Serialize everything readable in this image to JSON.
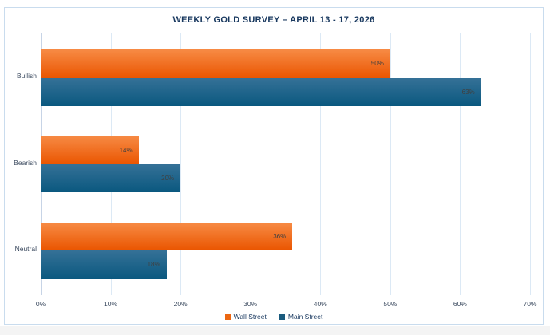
{
  "chart_data": {
    "type": "bar",
    "orientation": "horizontal",
    "title": "WEEKLY GOLD SURVEY – APRIL 13 - 17, 2026",
    "categories": [
      "Bullish",
      "Bearish",
      "Neutral"
    ],
    "series": [
      {
        "name": "Wall Street",
        "color": "#ec6712",
        "gradient_top": "#f78b45",
        "gradient_bottom": "#ea5500",
        "values": [
          50,
          14,
          36
        ]
      },
      {
        "name": "Main Street",
        "color": "#1a5b7e",
        "gradient_top": "#357197",
        "gradient_bottom": "#0a587f",
        "values": [
          63,
          20,
          18
        ]
      }
    ],
    "value_suffix": "%",
    "data_labels": "inside-end",
    "xlim": [
      0,
      70
    ],
    "x_ticks": [
      "0%",
      "10%",
      "20%",
      "30%",
      "40%",
      "50%",
      "60%",
      "70%"
    ],
    "grid": true,
    "legend_position": "bottom"
  }
}
